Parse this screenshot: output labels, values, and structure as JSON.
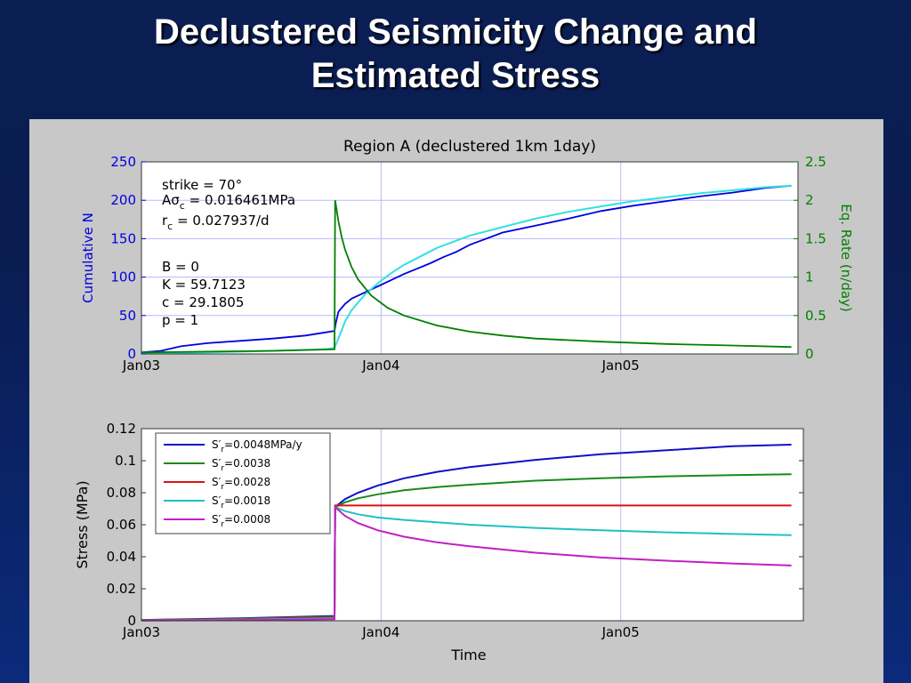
{
  "slide": {
    "title_line1": "Declustered Seismicity Change and",
    "title_line2": "Estimated Stress"
  },
  "colors": {
    "cumulative": "#0000dd",
    "model": "#33e0e0",
    "rate": "#008000",
    "s1": "#1010c8",
    "s2": "#1a8a1a",
    "s3": "#e01010",
    "s4": "#20c0c0",
    "s5": "#c020c0"
  },
  "chart_data": [
    {
      "type": "line",
      "title": "Region A (declustered 1km 1day)",
      "ylabel": "Cumulative N",
      "ylabel_right": "Eq. Rate (n/day)",
      "ylim": [
        0,
        250
      ],
      "ylim_right": [
        0,
        2.5
      ],
      "yticks": [
        "0",
        "50",
        "100",
        "150",
        "200",
        "250"
      ],
      "yticks_right": [
        "0",
        "0.5",
        "1",
        "1.5",
        "2",
        "2.5"
      ],
      "xticks": [
        "Jan03",
        "Jan04",
        "Jan05"
      ],
      "xlim_days": [
        0,
        1000
      ],
      "step_day": 295,
      "grid": true,
      "annotations": {
        "strike": "strike = 70°",
        "asc_prefix": "A",
        "asc_sigma": "σ",
        "asc_sub": "c",
        "asc_value": " = 0.016461MPa",
        "rc_prefix": "r",
        "rc_sub": "c",
        "rc_value": " = 0.027937/d",
        "B": "B = 0",
        "K": "K = 59.7123",
        "c": "c = 29.1805",
        "p": "p = 1"
      },
      "series": [
        {
          "axis": "left",
          "x": [
            0,
            30,
            60,
            100,
            150,
            200,
            250,
            280,
            294,
            296,
            300,
            310,
            320,
            340,
            360,
            380,
            400,
            420,
            440,
            460,
            480,
            500,
            550,
            600,
            650,
            700,
            750,
            800,
            850,
            900,
            950,
            990
          ],
          "y": [
            2,
            4,
            10,
            14,
            17,
            20,
            24,
            28,
            30,
            40,
            55,
            65,
            72,
            80,
            88,
            96,
            104,
            111,
            118,
            126,
            133,
            142,
            158,
            167,
            176,
            186,
            193,
            199,
            205,
            210,
            216,
            219
          ]
        },
        {
          "axis": "left",
          "x": [
            0,
            100,
            200,
            280,
            294,
            300,
            310,
            320,
            340,
            360,
            380,
            400,
            450,
            500,
            550,
            600,
            650,
            700,
            750,
            800,
            850,
            900,
            950,
            990
          ],
          "y": [
            1,
            2,
            4,
            6,
            8,
            20,
            42,
            57,
            77,
            92,
            105,
            116,
            138,
            154,
            165,
            176,
            185,
            192,
            199,
            204,
            209,
            213,
            217,
            219
          ]
        },
        {
          "axis": "right",
          "x": [
            0,
            100,
            200,
            294,
            295,
            300,
            305,
            310,
            320,
            330,
            350,
            375,
            400,
            450,
            500,
            550,
            600,
            700,
            800,
            900,
            990
          ],
          "y": [
            0.02,
            0.03,
            0.04,
            0.06,
            2.0,
            1.73,
            1.52,
            1.36,
            1.13,
            0.97,
            0.76,
            0.6,
            0.5,
            0.37,
            0.29,
            0.24,
            0.2,
            0.16,
            0.13,
            0.11,
            0.09
          ]
        }
      ]
    },
    {
      "type": "line",
      "xlabel": "Time",
      "ylabel": "Stress (MPa)",
      "ylim": [
        0,
        0.12
      ],
      "yticks": [
        "0",
        "0.02",
        "0.04",
        "0.06",
        "0.08",
        "0.1",
        "0.12"
      ],
      "xticks": [
        "Jan03",
        "Jan04",
        "Jan05"
      ],
      "xlim_days": [
        0,
        1000
      ],
      "step_day": 295,
      "grid": true,
      "legend_position": "top-left",
      "series": [
        {
          "legend_label": "=0.0048MPa/y",
          "x": [
            0,
            150,
            294,
            295,
            310,
            330,
            360,
            400,
            450,
            500,
            600,
            700,
            800,
            900,
            990
          ],
          "y": [
            0.0005,
            0.0015,
            0.003,
            0.071,
            0.076,
            0.08,
            0.0845,
            0.089,
            0.093,
            0.096,
            0.1005,
            0.104,
            0.1065,
            0.109,
            0.11
          ]
        },
        {
          "legend_label": "=0.0038",
          "x": [
            0,
            150,
            294,
            295,
            310,
            330,
            360,
            400,
            450,
            500,
            600,
            700,
            800,
            900,
            990
          ],
          "y": [
            0.0004,
            0.0012,
            0.0025,
            0.071,
            0.074,
            0.0765,
            0.079,
            0.0815,
            0.0835,
            0.085,
            0.0875,
            0.089,
            0.0902,
            0.091,
            0.0915
          ]
        },
        {
          "legend_label": "=0.0028",
          "x": [
            0,
            150,
            294,
            295,
            990
          ],
          "y": [
            0.0003,
            0.001,
            0.002,
            0.072,
            0.072
          ]
        },
        {
          "legend_label": "=0.0018",
          "x": [
            0,
            150,
            294,
            295,
            310,
            330,
            360,
            400,
            450,
            500,
            600,
            700,
            800,
            900,
            990
          ],
          "y": [
            0.0002,
            0.0007,
            0.0015,
            0.071,
            0.0685,
            0.0665,
            0.0645,
            0.063,
            0.0615,
            0.06,
            0.058,
            0.0565,
            0.0552,
            0.0542,
            0.0535
          ]
        },
        {
          "legend_label": "=0.0008",
          "x": [
            0,
            150,
            294,
            295,
            310,
            330,
            360,
            400,
            450,
            500,
            600,
            700,
            800,
            900,
            990
          ],
          "y": [
            0.0001,
            0.0004,
            0.001,
            0.071,
            0.0655,
            0.061,
            0.0565,
            0.0525,
            0.049,
            0.0465,
            0.0425,
            0.0395,
            0.0375,
            0.0358,
            0.0345
          ]
        }
      ],
      "legend_prefix": "S",
      "legend_prime": "′",
      "legend_sub": "r"
    }
  ]
}
